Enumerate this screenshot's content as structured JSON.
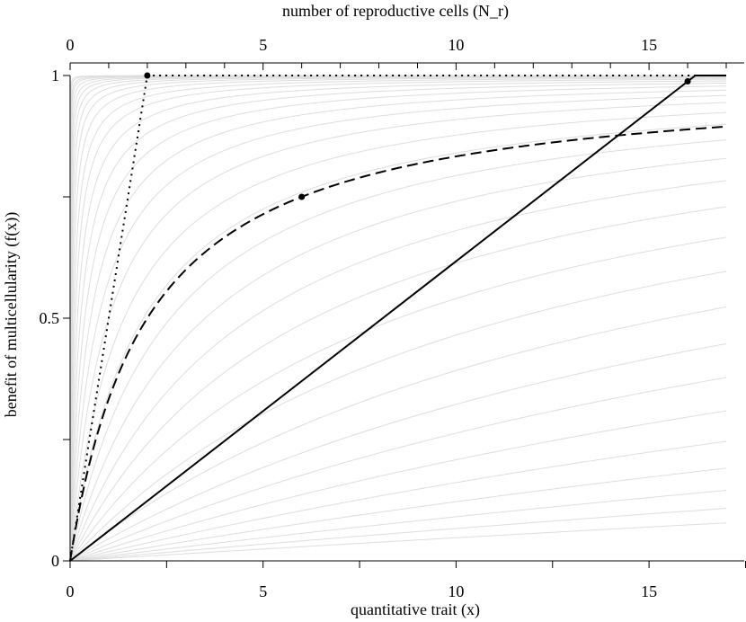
{
  "chart_data": {
    "type": "line",
    "title": "",
    "xlabel": "quantitative trait (x)",
    "ylabel": "benefit of multicellularity (f(x))",
    "top_xlabel": "number of reproductive cells (N_r)",
    "xlim": [
      0,
      17
    ],
    "ylim": [
      0,
      1
    ],
    "top_xlim": [
      0,
      17
    ],
    "x_ticks": [
      0,
      5,
      10,
      15
    ],
    "x_minor_ticks": [
      2.5,
      7.5,
      12.5,
      17.5
    ],
    "y_ticks": [
      0,
      0.5,
      1
    ],
    "y_minor_ticks": [
      0.25,
      0.75
    ],
    "top_x_ticks": [
      0,
      5,
      10,
      15
    ],
    "top_x_minor_ticks": [
      1,
      2,
      3,
      4,
      6,
      7,
      8,
      9,
      11,
      12,
      13,
      14,
      16,
      17
    ],
    "grid": false,
    "legend": "none",
    "background_family": {
      "form": "y = x / (x + a)",
      "a_values": [
        0.0005,
        0.001,
        0.002,
        0.003,
        0.005,
        0.008,
        0.012,
        0.018,
        0.027,
        0.04,
        0.06,
        0.09,
        0.13,
        0.19,
        0.27,
        0.38,
        0.53,
        0.73,
        1,
        1.4,
        1.9,
        2.6,
        3.5,
        4.7,
        6.3,
        8.5,
        11.5,
        15.5,
        21,
        28,
        38,
        52,
        72,
        100,
        140,
        200
      ],
      "color": "#dddddd"
    },
    "series": [
      {
        "style": "dotted",
        "x": [
          0,
          2,
          17
        ],
        "y": [
          0,
          1,
          1
        ],
        "marker": {
          "x": 2,
          "y": 1
        }
      },
      {
        "style": "dashed",
        "function": "x / (x + 2)",
        "marker": {
          "x": 6,
          "y": 0.75
        }
      },
      {
        "style": "solid",
        "x": [
          0,
          16.2,
          17
        ],
        "y": [
          0,
          1,
          1
        ],
        "marker": {
          "x": 16,
          "y": 0.988
        }
      }
    ]
  }
}
